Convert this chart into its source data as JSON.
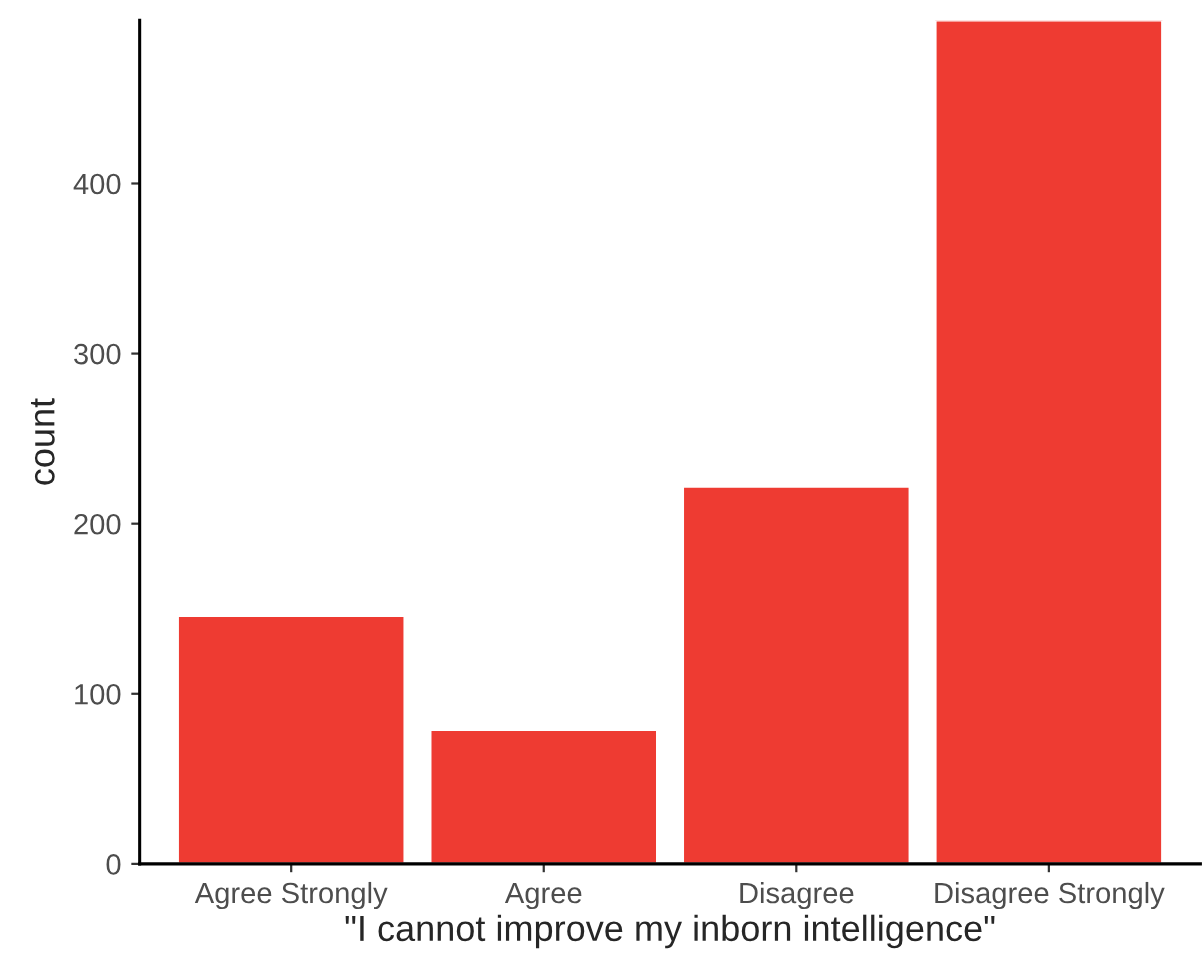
{
  "chart_data": {
    "type": "bar",
    "xlabel": "\"I cannot improve my inborn intelligence\"",
    "ylabel": "count",
    "categories": [
      "Agree Strongly",
      "Agree",
      "Disagree",
      "Disagree Strongly"
    ],
    "values": [
      146,
      79,
      222,
      496
    ],
    "color": "#ee3b32",
    "ylim": [
      0,
      496
    ],
    "yticks": [
      0,
      100,
      200,
      300,
      400
    ],
    "grid": false
  }
}
